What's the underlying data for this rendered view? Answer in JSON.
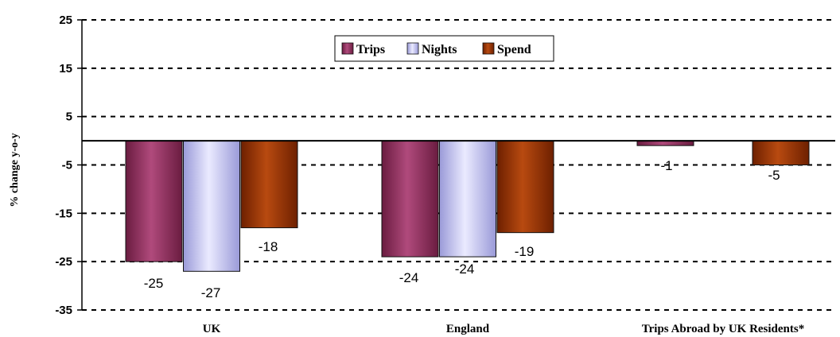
{
  "chart_data": {
    "type": "bar",
    "ylabel": "% change y-o-y",
    "ylim": [
      -35,
      25
    ],
    "yticks": [
      25,
      15,
      5,
      -5,
      -15,
      -25,
      -35
    ],
    "grid": true,
    "legend_position": "top-center",
    "categories": [
      "UK",
      "England",
      "Trips Abroad by UK Residents*"
    ],
    "series": [
      {
        "name": "Trips",
        "color": "#8b2a5a",
        "values": [
          -25,
          -24,
          -1
        ]
      },
      {
        "name": "Nights",
        "color": "#b8b8f0",
        "values": [
          -27,
          -24,
          null
        ]
      },
      {
        "name": "Spend",
        "color": "#8b2a00",
        "values": [
          -18,
          -19,
          -5
        ]
      }
    ],
    "data_labels": [
      [
        "-25",
        "-24",
        "-1"
      ],
      [
        "-27",
        "-24",
        ""
      ],
      [
        "-18",
        "-19",
        "-5"
      ]
    ]
  }
}
